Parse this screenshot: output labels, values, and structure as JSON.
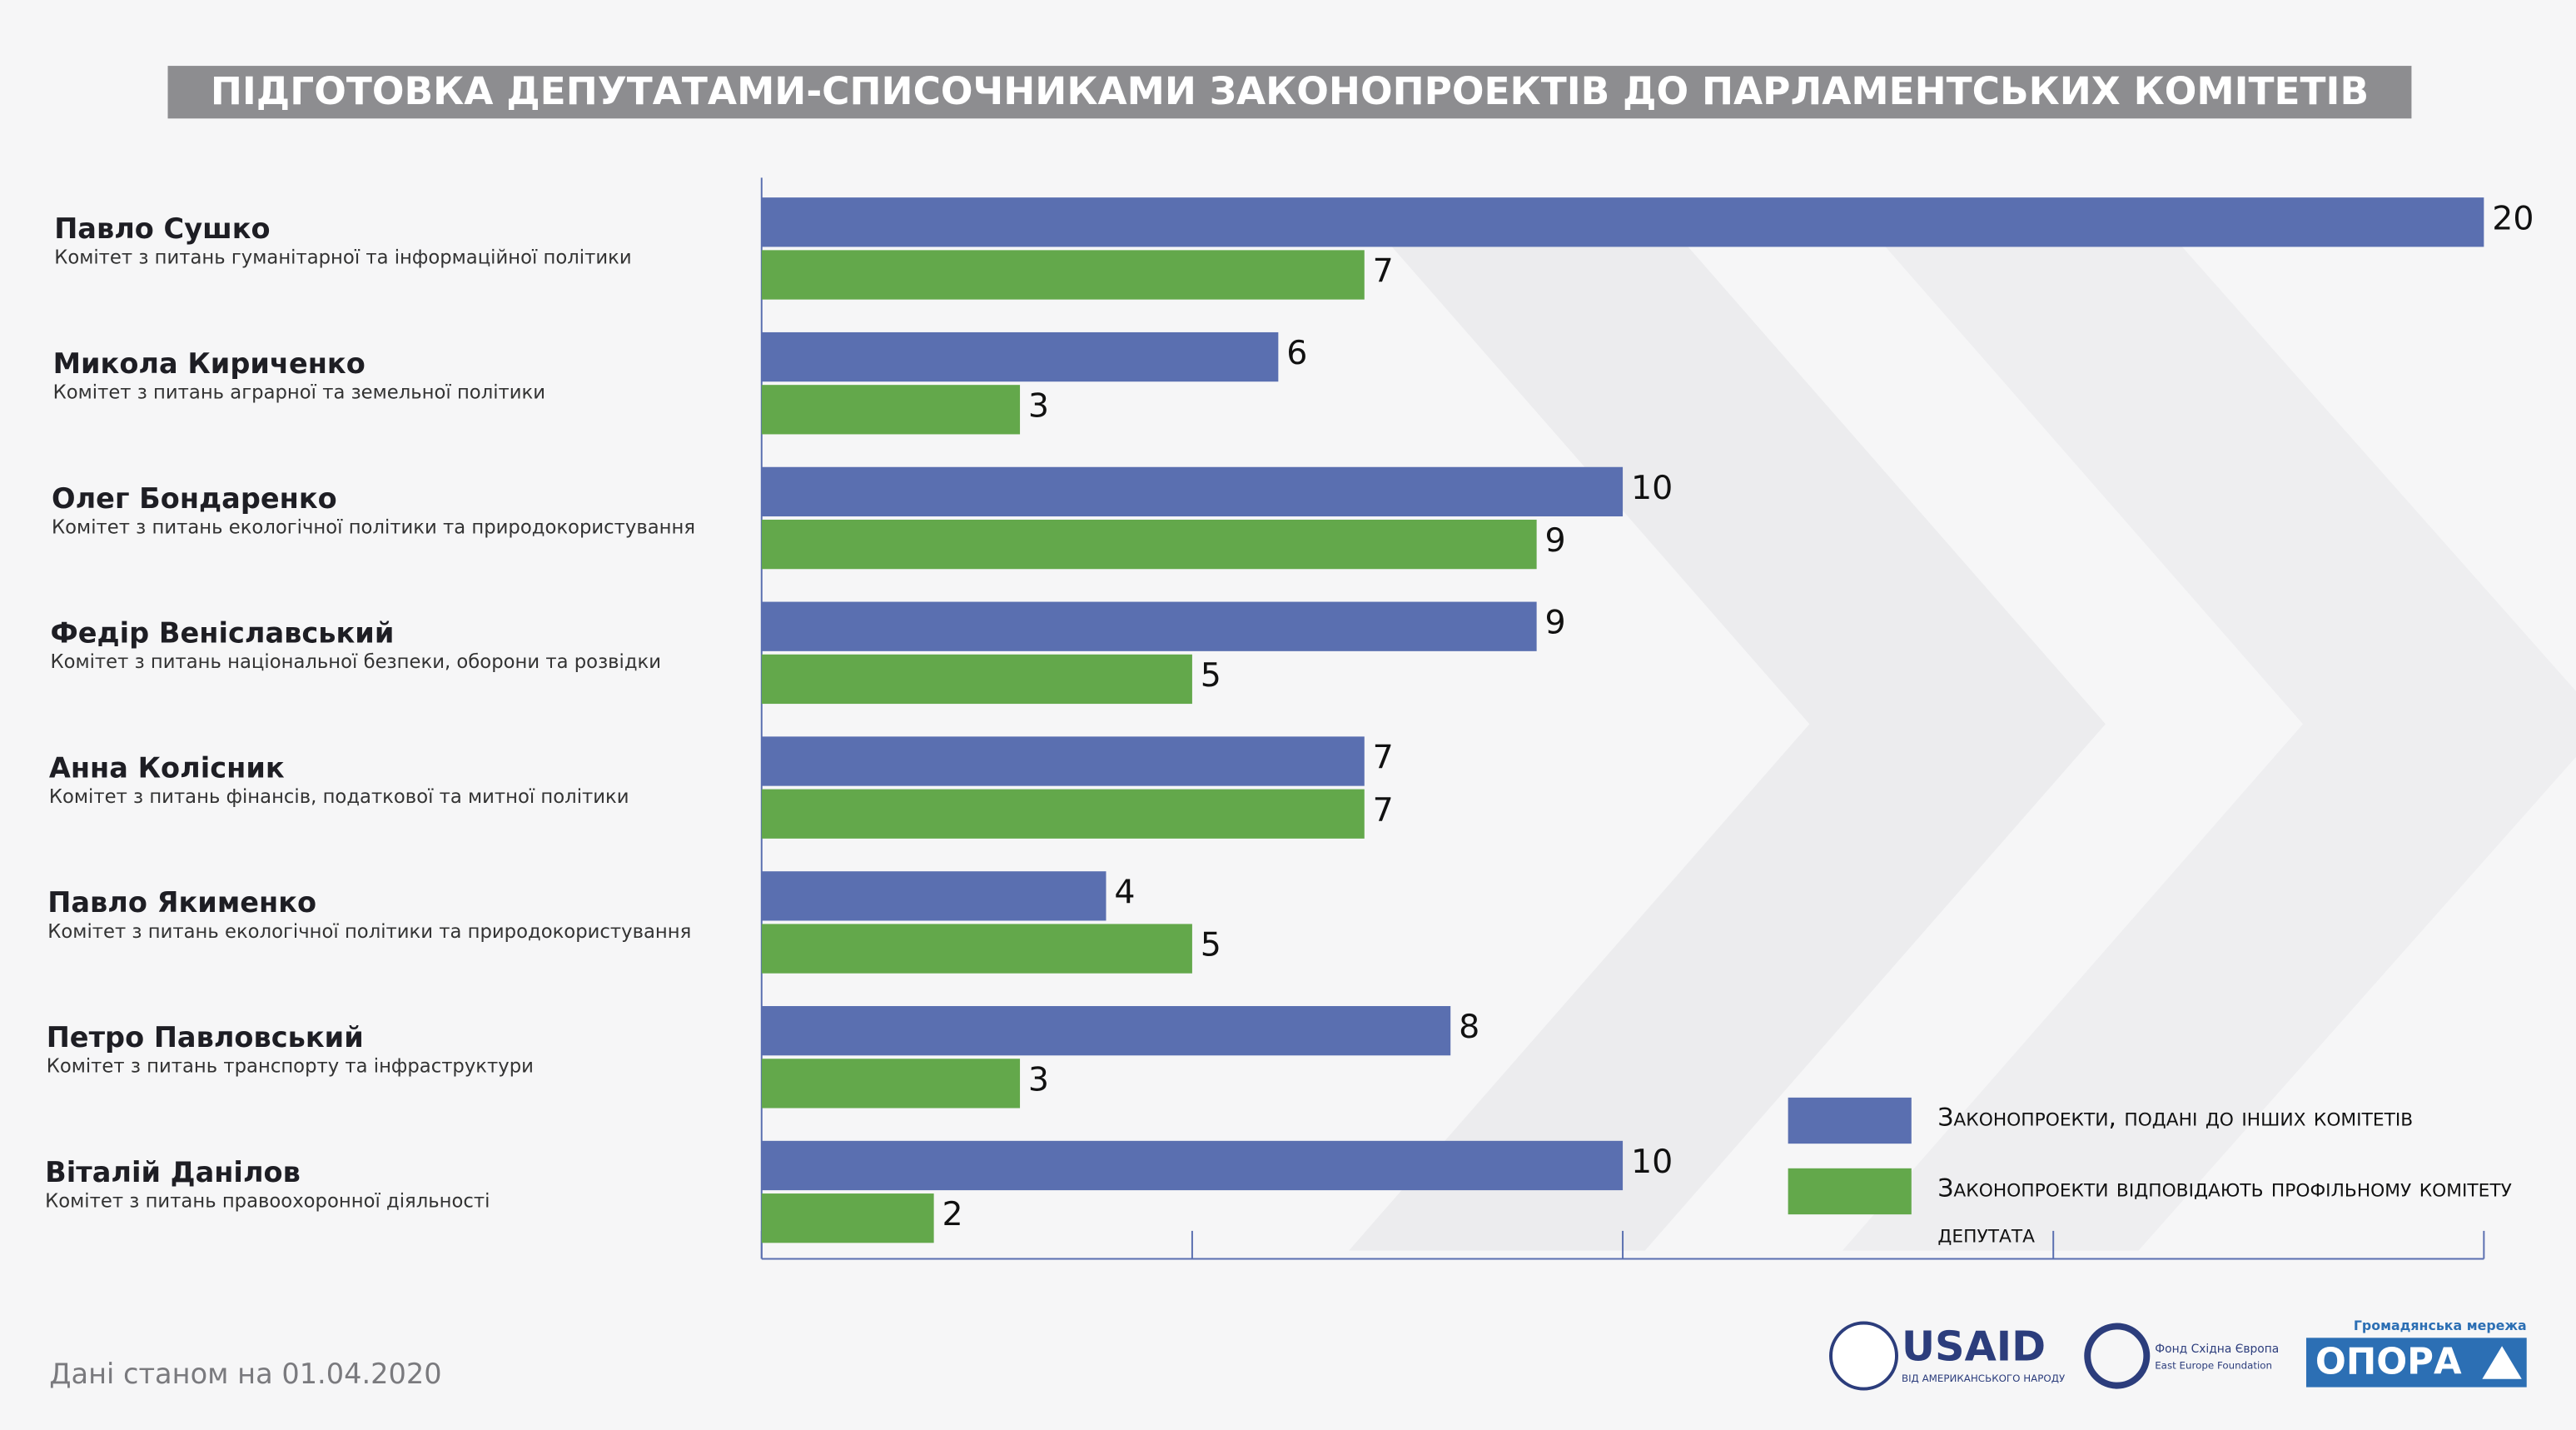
{
  "chart_data": {
    "type": "grouped-hbar",
    "title": "ПІДГОТОВКА ДЕПУТАТАМИ-СПИСОЧНИКАМИ ЗАКОНОПРОЕКТІВ ДО ПАРЛАМЕНТСЬКИХ КОМІТЕТІВ",
    "categories": [
      "Павло Сушко",
      "Микола Кириченко",
      "Олег Бондаренко",
      "Федір Веніславський",
      "Анна Колісник",
      "Павло Якименко",
      "Петро Павловський",
      "Віталій Данілов"
    ],
    "committees": [
      "Комітет з питань гуманітарної та інформаційної політики",
      "Комітет з питань аграрної та земельної політики",
      "Комітет з питань екологічної політики та природокористування",
      "Комітет з питань національної безпеки, оборони та розвідки",
      "Комітет з питань фінансів, податкової та митної політики",
      "Комітет з питань екологічної політики та природокористування",
      "Комітет з питань транспорту та інфраструктури",
      "Комітет з питань правоохоронної діяльності"
    ],
    "series": [
      {
        "name": "Законопроекти, подані до інших комітетів",
        "color": "#5a6fb0",
        "values": [
          20,
          6,
          10,
          9,
          7,
          4,
          8,
          10
        ]
      },
      {
        "name": "Законопроекти відповідають профільному комітету депутата",
        "color": "#63a84b",
        "values": [
          7,
          3,
          9,
          5,
          7,
          5,
          3,
          2
        ]
      }
    ],
    "xlim": [
      0,
      20
    ],
    "xticks": [
      0,
      5,
      10,
      15,
      20
    ],
    "note": "Дані станом на 01.04.2020"
  },
  "footer": {
    "usaid": "USAID",
    "usaid_sub": "ВІД АМЕРИКАНСЬКОГО НАРОДУ",
    "eef": "Фонд Східна Європа",
    "eef_en": "East Europe Foundation",
    "opora_sub": "Громадянська мережа",
    "opora": "ОПОРА"
  }
}
